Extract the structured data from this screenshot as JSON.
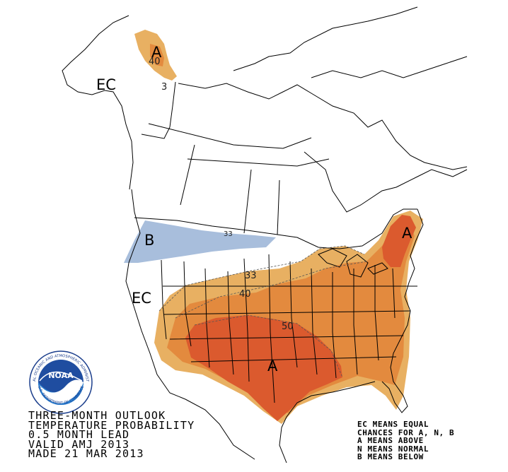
{
  "title_block": {
    "line1": "THREE-MONTH OUTLOOK",
    "line2": "TEMPERATURE PROBABILITY",
    "line3": "0.5 MONTH LEAD",
    "line4": "VALID AMJ 2013",
    "line5": "MADE 21 MAR 2013"
  },
  "legend": {
    "line1": "EC MEANS EQUAL",
    "line2": "CHANCES FOR A, N, B",
    "line3": "A MEANS ABOVE",
    "line4": "N MEANS NORMAL",
    "line5": "B MEANS BELOW"
  },
  "map_labels": {
    "ec_alaska": "EC",
    "ec_west": "EC",
    "a_alaska": "A",
    "a_northeast": "A",
    "a_south": "A",
    "b_northwest": "B"
  },
  "contour_labels": {
    "alaska_40": "40",
    "alaska_33": "3",
    "c33": "33",
    "c40": "40",
    "c50": "50",
    "nw_33": "33"
  },
  "logo": {
    "text": "NOAA",
    "ring_text": "NATIONAL OCEANIC AND ATMOSPHERIC ADMINISTRATION",
    "ring_text_bottom": "U.S. DEPARTMENT OF COMMERCE",
    "icon": "noaa-logo-icon"
  },
  "colors": {
    "above_33": "#e8b062",
    "above_40": "#e38a3e",
    "above_50": "#db5a2e",
    "below_33": "#a8bedc",
    "boundary": "#000000"
  }
}
